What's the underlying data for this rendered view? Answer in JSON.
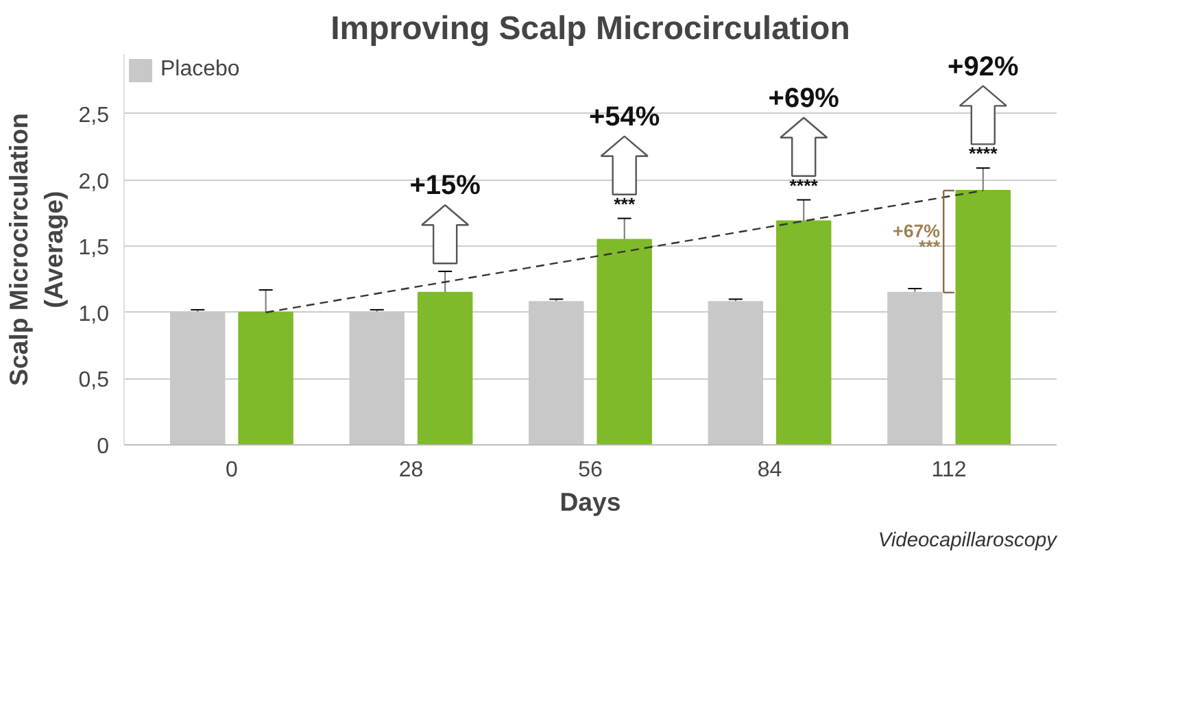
{
  "chart_data": {
    "type": "bar",
    "title": "Improving Scalp Microcirculation",
    "xlabel": "Days",
    "ylabel": "Scalp Microcirculation\n(Average)",
    "categories": [
      "0",
      "28",
      "56",
      "84",
      "112"
    ],
    "series": [
      {
        "name": "Placebo",
        "color": "#c8c8c8",
        "values": [
          1.0,
          1.0,
          1.08,
          1.08,
          1.15
        ],
        "errors": [
          0.02,
          0.02,
          0.02,
          0.02,
          0.03
        ]
      },
      {
        "color": "#7fba2a",
        "values": [
          1.0,
          1.15,
          1.55,
          1.69,
          1.92
        ],
        "errors": [
          0.17,
          0.16,
          0.16,
          0.16,
          0.17
        ]
      },
      {
        "type": "line",
        "line_style": "dashed",
        "color": "#333333",
        "x": [
          "0",
          "112"
        ],
        "values": [
          1.0,
          1.92
        ]
      }
    ],
    "ylim": [
      0,
      2.95
    ],
    "yticks": [
      {
        "value": 0,
        "label": "0"
      },
      {
        "value": 0.5,
        "label": "0,5"
      },
      {
        "value": 1.0,
        "label": "1,0"
      },
      {
        "value": 1.5,
        "label": "1,5"
      },
      {
        "value": 2.0,
        "label": "2,0"
      },
      {
        "value": 2.5,
        "label": "2,5"
      }
    ],
    "grid": "y",
    "legend": "top left",
    "annotations": [
      "+15%",
      "***",
      "+54%",
      "****",
      "+69%",
      "****",
      "+92%",
      "+67%",
      "***",
      "Videocapillaroscopy"
    ]
  }
}
